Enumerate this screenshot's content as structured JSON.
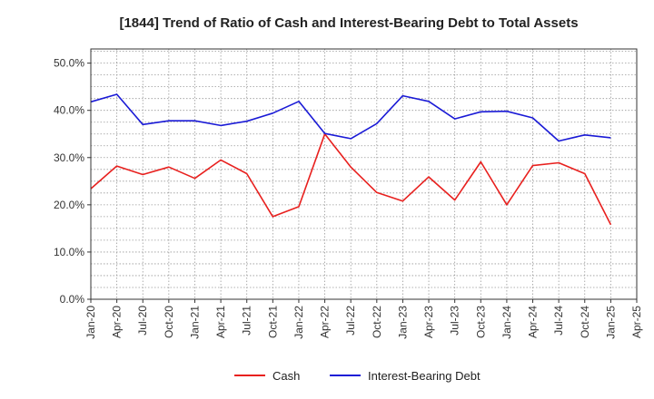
{
  "chart_data": {
    "type": "line",
    "title": "[1844]  Trend of Ratio of Cash and Interest-Bearing Debt to Total Assets",
    "xlabel": "",
    "ylabel": "",
    "x_tick_labels": [
      "Jan-20",
      "Apr-20",
      "Jul-20",
      "Oct-20",
      "Jan-21",
      "Apr-21",
      "Jul-21",
      "Oct-21",
      "Jan-22",
      "Apr-22",
      "Jul-22",
      "Oct-22",
      "Jan-23",
      "Apr-23",
      "Jul-23",
      "Oct-23",
      "Jan-24",
      "Apr-24",
      "Jul-24",
      "Oct-24",
      "Jan-25",
      "Apr-25"
    ],
    "y_tick_labels": [
      "0.0%",
      "10.0%",
      "20.0%",
      "30.0%",
      "40.0%",
      "50.0%"
    ],
    "y_ticks": [
      0,
      10,
      20,
      30,
      40,
      50
    ],
    "ylim": [
      0,
      53
    ],
    "grid": true,
    "legend_position": "bottom",
    "series": [
      {
        "name": "Cash",
        "color": "#e8201e",
        "values": [
          23.4,
          28.2,
          26.4,
          28.0,
          25.6,
          29.5,
          26.6,
          17.5,
          19.6,
          35.0,
          28.0,
          22.6,
          20.8,
          25.9,
          21.0,
          29.1,
          20.0,
          28.3,
          28.9,
          26.6,
          15.8
        ]
      },
      {
        "name": "Interest-Bearing Debt",
        "color": "#1a1ad6",
        "values": [
          41.8,
          43.4,
          37.0,
          37.8,
          37.8,
          36.8,
          37.7,
          39.4,
          41.9,
          35.1,
          34.0,
          37.2,
          43.1,
          41.9,
          38.2,
          39.7,
          39.8,
          38.4,
          33.5,
          34.8,
          34.2
        ]
      }
    ]
  }
}
